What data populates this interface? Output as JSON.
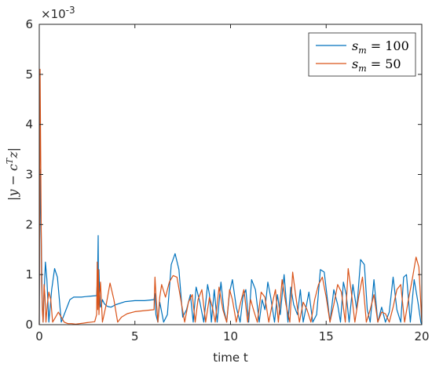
{
  "chart_data": {
    "type": "line",
    "xlabel": "time t",
    "ylabel": "|y − c",
    "ylabel_sup": "T",
    "ylabel_tail": "z|",
    "exponent_label": "×10",
    "exponent_power": "-3",
    "xlim": [
      0,
      20
    ],
    "ylim": [
      0,
      6
    ],
    "x_ticks": [
      0,
      5,
      10,
      15,
      20
    ],
    "y_ticks": [
      0,
      1,
      2,
      3,
      4,
      5,
      6
    ],
    "y_unit_scale": 0.001,
    "legend_position": "top-right",
    "grid": false,
    "series": [
      {
        "name_base": "s",
        "name_sub": "m",
        "name_value": " = 100",
        "color": "#0072BD",
        "x": [
          0,
          0.05,
          0.1,
          0.15,
          0.2,
          0.25,
          0.32,
          0.4,
          0.5,
          0.65,
          0.8,
          0.95,
          1.05,
          1.15,
          1.4,
          1.6,
          1.8,
          2.0,
          2.2,
          2.4,
          2.7,
          3.0,
          3.05,
          3.08,
          3.1,
          3.12,
          3.15,
          3.2,
          3.25,
          3.3,
          3.4,
          3.5,
          3.6,
          3.75,
          4.0,
          4.5,
          5.0,
          5.5,
          6.0,
          6.05,
          6.1,
          6.2,
          6.3,
          6.5,
          6.7,
          6.9,
          7.1,
          7.3,
          7.5,
          7.7,
          7.9,
          8.05,
          8.2,
          8.4,
          8.6,
          8.8,
          8.9,
          9.0,
          9.15,
          9.3,
          9.5,
          9.65,
          9.8,
          9.95,
          10.1,
          10.3,
          10.5,
          10.65,
          10.8,
          10.95,
          11.1,
          11.3,
          11.5,
          11.65,
          11.8,
          11.95,
          12.1,
          12.3,
          12.45,
          12.6,
          12.8,
          13.0,
          13.15,
          13.3,
          13.5,
          13.65,
          13.8,
          13.95,
          14.1,
          14.3,
          14.5,
          14.7,
          14.9,
          15.05,
          15.2,
          15.4,
          15.6,
          15.75,
          15.9,
          16.05,
          16.2,
          16.4,
          16.6,
          16.8,
          17.0,
          17.15,
          17.3,
          17.5,
          17.7,
          17.9,
          18.1,
          18.3,
          18.5,
          18.7,
          18.9,
          19.05,
          19.2,
          19.4,
          19.6,
          19.8,
          19.95,
          20.0
        ],
        "y": [
          0.0,
          3.1,
          1.9,
          0.5,
          0.05,
          0.6,
          1.25,
          0.9,
          0.05,
          0.7,
          1.12,
          0.95,
          0.5,
          0.05,
          0.3,
          0.5,
          0.55,
          0.55,
          0.55,
          0.56,
          0.57,
          0.58,
          1.0,
          1.78,
          0.4,
          1.1,
          0.7,
          0.35,
          0.4,
          0.5,
          0.42,
          0.38,
          0.36,
          0.35,
          0.4,
          0.46,
          0.48,
          0.48,
          0.5,
          0.62,
          0.2,
          0.05,
          0.45,
          0.05,
          0.2,
          1.2,
          1.42,
          1.1,
          0.15,
          0.3,
          0.6,
          0.05,
          0.75,
          0.45,
          0.05,
          0.8,
          0.6,
          0.05,
          0.7,
          0.05,
          0.85,
          0.3,
          0.05,
          0.65,
          0.9,
          0.35,
          0.05,
          0.55,
          0.7,
          0.05,
          0.9,
          0.7,
          0.05,
          0.5,
          0.3,
          0.85,
          0.55,
          0.05,
          0.6,
          0.2,
          1.0,
          0.05,
          0.75,
          0.4,
          0.2,
          0.7,
          0.05,
          0.35,
          0.65,
          0.05,
          0.2,
          1.1,
          1.05,
          0.55,
          0.05,
          0.7,
          0.4,
          0.05,
          0.85,
          0.6,
          0.05,
          0.8,
          0.3,
          1.3,
          1.2,
          0.3,
          0.05,
          0.9,
          0.05,
          0.35,
          0.05,
          0.25,
          0.95,
          0.3,
          0.05,
          0.95,
          1.0,
          0.05,
          0.9,
          0.45,
          0.05,
          0.0
        ]
      },
      {
        "name_base": "s",
        "name_sub": "m",
        "name_value": " = 50",
        "color": "#D95319",
        "x": [
          0,
          0.04,
          0.08,
          0.12,
          0.16,
          0.2,
          0.25,
          0.3,
          0.35,
          0.42,
          0.5,
          0.6,
          0.7,
          0.85,
          1.0,
          1.15,
          1.3,
          1.5,
          1.7,
          1.9,
          2.1,
          2.3,
          2.5,
          2.7,
          2.9,
          3.0,
          3.03,
          3.06,
          3.09,
          3.12,
          3.16,
          3.2,
          3.3,
          3.5,
          3.7,
          3.9,
          4.1,
          4.3,
          4.6,
          5.0,
          5.5,
          6.0,
          6.05,
          6.1,
          6.2,
          6.3,
          6.4,
          6.6,
          6.8,
          7.0,
          7.2,
          7.4,
          7.6,
          7.8,
          8.0,
          8.15,
          8.3,
          8.5,
          8.7,
          8.9,
          9.05,
          9.2,
          9.4,
          9.6,
          9.8,
          9.95,
          10.1,
          10.3,
          10.5,
          10.7,
          10.9,
          11.05,
          11.2,
          11.4,
          11.6,
          11.8,
          12.0,
          12.2,
          12.35,
          12.5,
          12.7,
          12.9,
          13.1,
          13.25,
          13.4,
          13.6,
          13.8,
          14.0,
          14.2,
          14.4,
          14.6,
          14.8,
          15.0,
          15.2,
          15.4,
          15.6,
          15.8,
          16.0,
          16.15,
          16.3,
          16.5,
          16.7,
          16.9,
          17.1,
          17.3,
          17.5,
          17.7,
          17.9,
          18.1,
          18.3,
          18.5,
          18.7,
          18.9,
          19.1,
          19.3,
          19.5,
          19.7,
          19.85,
          20.0
        ],
        "y": [
          0.0,
          5.1,
          3.2,
          0.9,
          0.3,
          0.05,
          0.8,
          0.55,
          0.05,
          0.4,
          0.65,
          0.5,
          0.05,
          0.15,
          0.25,
          0.15,
          0.05,
          0.02,
          0.02,
          0.01,
          0.02,
          0.03,
          0.04,
          0.05,
          0.06,
          0.2,
          1.25,
          0.3,
          1.1,
          0.2,
          0.6,
          0.85,
          0.05,
          0.4,
          0.83,
          0.5,
          0.05,
          0.15,
          0.22,
          0.26,
          0.28,
          0.3,
          0.95,
          0.6,
          0.05,
          0.55,
          0.8,
          0.55,
          0.85,
          0.98,
          0.95,
          0.5,
          0.05,
          0.45,
          0.6,
          0.05,
          0.5,
          0.7,
          0.05,
          0.55,
          0.35,
          0.05,
          0.75,
          0.3,
          0.05,
          0.7,
          0.5,
          0.05,
          0.4,
          0.7,
          0.05,
          0.5,
          0.3,
          0.05,
          0.65,
          0.55,
          0.05,
          0.45,
          0.7,
          0.05,
          0.9,
          0.4,
          0.05,
          1.05,
          0.6,
          0.05,
          0.45,
          0.3,
          0.05,
          0.5,
          0.8,
          0.95,
          0.55,
          0.05,
          0.4,
          0.8,
          0.65,
          0.05,
          1.12,
          0.7,
          0.05,
          0.55,
          0.95,
          0.05,
          0.3,
          0.6,
          0.05,
          0.25,
          0.22,
          0.05,
          0.35,
          0.7,
          0.8,
          0.05,
          0.5,
          0.9,
          1.35,
          1.15,
          0.05
        ]
      }
    ]
  }
}
